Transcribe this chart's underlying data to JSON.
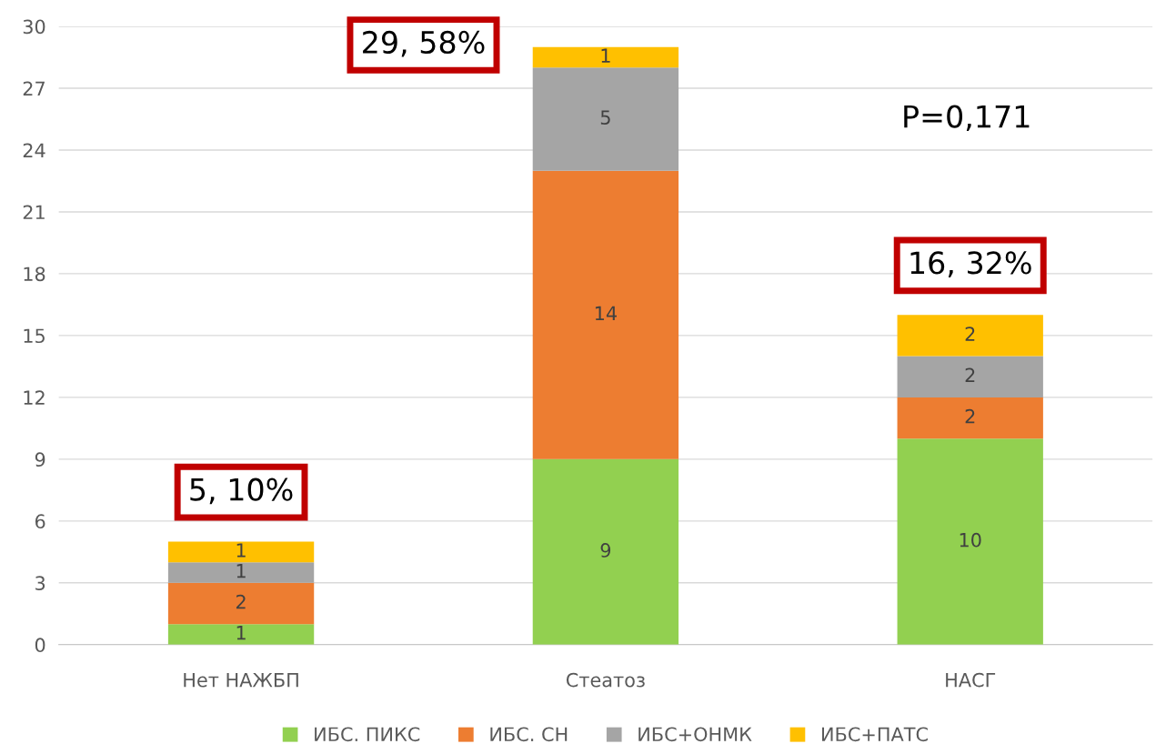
{
  "chart_data": {
    "type": "bar",
    "stacked": true,
    "categories": [
      "Нет НАЖБП",
      "Стеатоз",
      "НАСГ"
    ],
    "series": [
      {
        "name": "ИБС. ПИКС",
        "color": "#92d050",
        "values": [
          1,
          9,
          10
        ]
      },
      {
        "name": "ИБС. СН",
        "color": "#ed7d31",
        "values": [
          2,
          14,
          2
        ]
      },
      {
        "name": "ИБС+ОНМК",
        "color": "#a5a5a5",
        "values": [
          1,
          5,
          2
        ]
      },
      {
        "name": "ИБС+ПАТС",
        "color": "#ffc000",
        "values": [
          1,
          1,
          2
        ]
      }
    ],
    "ylim": [
      0,
      30
    ],
    "yticks": [
      0,
      3,
      6,
      9,
      12,
      15,
      18,
      21,
      24,
      27,
      30
    ],
    "grid": "y",
    "legend": "bottom",
    "data_labels": true,
    "totals": [
      "5, 10%",
      "29, 58%",
      "16, 32%"
    ],
    "annotations": [
      "P=0,171"
    ]
  }
}
